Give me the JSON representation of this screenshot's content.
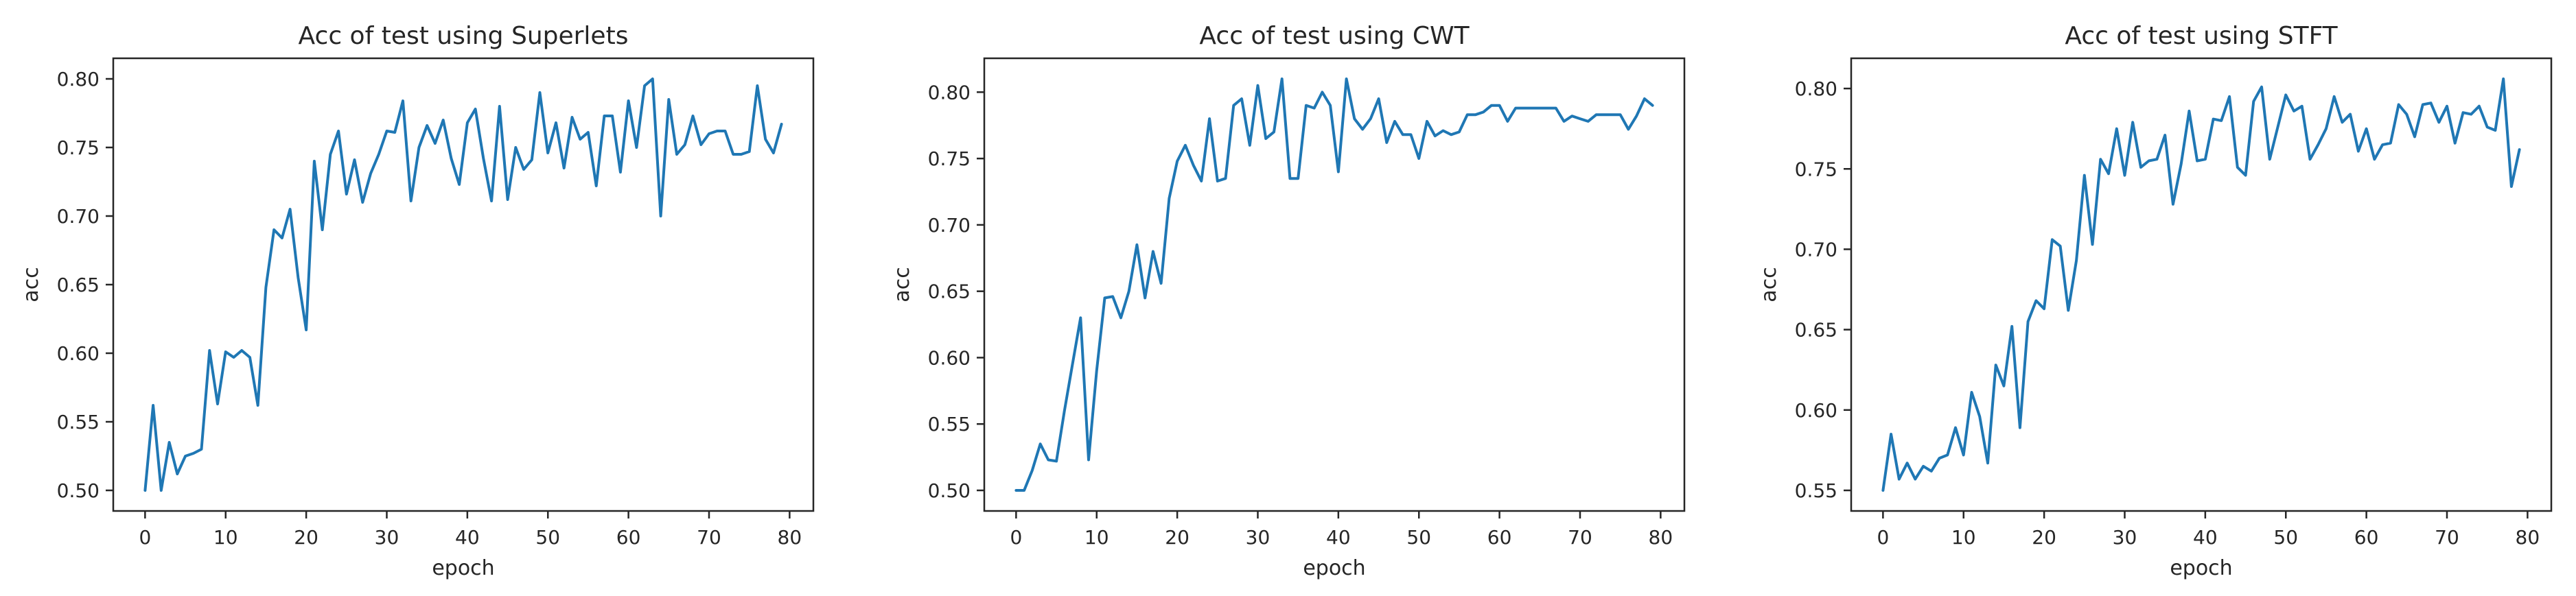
{
  "figure": {
    "background": "#ffffff",
    "text_color": "#262626",
    "spine_color": "#262626"
  },
  "chart_data": [
    {
      "type": "line",
      "title": "Acc of test using Superlets",
      "xlabel": "epoch",
      "ylabel": "acc",
      "line_color": "#1f77b4",
      "grid": false,
      "legend": false,
      "x_start": 0,
      "x_step": 1,
      "xlim": [
        -3.95,
        82.95
      ],
      "ylim": [
        0.485,
        0.815
      ],
      "xticks": [
        0,
        10,
        20,
        30,
        40,
        50,
        60,
        70,
        80
      ],
      "yticks": [
        0.5,
        0.55,
        0.6,
        0.65,
        0.7,
        0.75,
        0.8
      ],
      "values": [
        0.5,
        0.562,
        0.5,
        0.535,
        0.512,
        0.525,
        0.527,
        0.53,
        0.602,
        0.563,
        0.601,
        0.597,
        0.602,
        0.597,
        0.562,
        0.648,
        0.69,
        0.684,
        0.705,
        0.655,
        0.617,
        0.74,
        0.69,
        0.745,
        0.762,
        0.716,
        0.741,
        0.71,
        0.731,
        0.745,
        0.762,
        0.761,
        0.784,
        0.711,
        0.75,
        0.766,
        0.753,
        0.77,
        0.742,
        0.723,
        0.768,
        0.778,
        0.742,
        0.711,
        0.78,
        0.712,
        0.75,
        0.734,
        0.741,
        0.79,
        0.746,
        0.768,
        0.735,
        0.772,
        0.756,
        0.761,
        0.722,
        0.773,
        0.773,
        0.732,
        0.784,
        0.75,
        0.795,
        0.8,
        0.7,
        0.785,
        0.745,
        0.752,
        0.773,
        0.752,
        0.76,
        0.762,
        0.762,
        0.745,
        0.745,
        0.747,
        0.795,
        0.756,
        0.746,
        0.767
      ]
    },
    {
      "type": "line",
      "title": "Acc of test using CWT",
      "xlabel": "epoch",
      "ylabel": "acc",
      "line_color": "#1f77b4",
      "grid": false,
      "legend": false,
      "x_start": 0,
      "x_step": 1,
      "xlim": [
        -3.95,
        82.95
      ],
      "ylim": [
        0.4845,
        0.8255
      ],
      "xticks": [
        0,
        10,
        20,
        30,
        40,
        50,
        60,
        70,
        80
      ],
      "yticks": [
        0.5,
        0.55,
        0.6,
        0.65,
        0.7,
        0.75,
        0.8
      ],
      "values": [
        0.5,
        0.5,
        0.515,
        0.535,
        0.523,
        0.522,
        0.56,
        0.595,
        0.63,
        0.523,
        0.59,
        0.645,
        0.646,
        0.63,
        0.65,
        0.685,
        0.645,
        0.68,
        0.656,
        0.72,
        0.748,
        0.76,
        0.745,
        0.733,
        0.78,
        0.733,
        0.735,
        0.79,
        0.795,
        0.76,
        0.805,
        0.765,
        0.77,
        0.81,
        0.735,
        0.735,
        0.79,
        0.788,
        0.8,
        0.79,
        0.74,
        0.81,
        0.78,
        0.772,
        0.78,
        0.795,
        0.762,
        0.778,
        0.768,
        0.768,
        0.75,
        0.778,
        0.767,
        0.771,
        0.768,
        0.77,
        0.783,
        0.783,
        0.785,
        0.79,
        0.79,
        0.778,
        0.788,
        0.788,
        0.788,
        0.788,
        0.788,
        0.788,
        0.778,
        0.782,
        0.78,
        0.778,
        0.783,
        0.783,
        0.783,
        0.783,
        0.772,
        0.782,
        0.795,
        0.79
      ]
    },
    {
      "type": "line",
      "title": "Acc of test using STFT",
      "xlabel": "epoch",
      "ylabel": "acc",
      "line_color": "#1f77b4",
      "grid": false,
      "legend": false,
      "x_start": 0,
      "x_step": 1,
      "xlim": [
        -3.95,
        82.95
      ],
      "ylim": [
        0.5372,
        0.8188
      ],
      "xticks": [
        0,
        10,
        20,
        30,
        40,
        50,
        60,
        70,
        80
      ],
      "yticks": [
        0.55,
        0.6,
        0.65,
        0.7,
        0.75,
        0.8
      ],
      "values": [
        0.55,
        0.585,
        0.557,
        0.567,
        0.557,
        0.565,
        0.562,
        0.57,
        0.572,
        0.589,
        0.572,
        0.611,
        0.596,
        0.567,
        0.628,
        0.615,
        0.652,
        0.589,
        0.655,
        0.668,
        0.663,
        0.706,
        0.702,
        0.662,
        0.693,
        0.746,
        0.703,
        0.756,
        0.747,
        0.775,
        0.746,
        0.779,
        0.751,
        0.755,
        0.756,
        0.771,
        0.728,
        0.753,
        0.786,
        0.755,
        0.756,
        0.781,
        0.78,
        0.795,
        0.751,
        0.746,
        0.792,
        0.801,
        0.756,
        0.776,
        0.796,
        0.786,
        0.789,
        0.756,
        0.765,
        0.775,
        0.795,
        0.779,
        0.784,
        0.761,
        0.775,
        0.756,
        0.765,
        0.766,
        0.79,
        0.784,
        0.77,
        0.79,
        0.791,
        0.779,
        0.789,
        0.766,
        0.785,
        0.784,
        0.789,
        0.776,
        0.774,
        0.806,
        0.739,
        0.762
      ]
    }
  ]
}
